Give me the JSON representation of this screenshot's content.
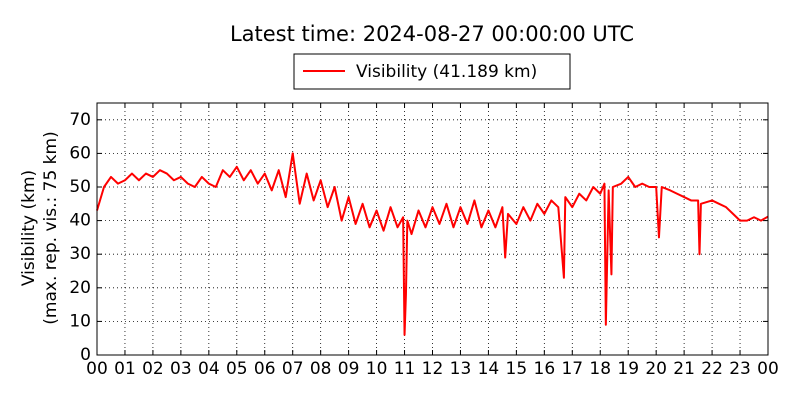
{
  "chart_data": {
    "type": "line",
    "title": "Latest time: 2024-08-27 00:00:00 UTC",
    "ylabel": [
      "Visibility (km)",
      "(max. rep. vis.: 75 km)"
    ],
    "x": [
      0,
      0.25,
      0.5,
      0.75,
      1,
      1.25,
      1.5,
      1.75,
      2,
      2.25,
      2.5,
      2.75,
      3,
      3.25,
      3.5,
      3.75,
      4,
      4.25,
      4.5,
      4.75,
      5,
      5.25,
      5.5,
      5.75,
      6,
      6.25,
      6.5,
      6.75,
      7,
      7.25,
      7.5,
      7.75,
      8,
      8.25,
      8.5,
      8.75,
      9,
      9.25,
      9.5,
      9.75,
      10,
      10.25,
      10.5,
      10.75,
      10.95,
      11,
      11.05,
      11.1,
      11.25,
      11.5,
      11.75,
      12,
      12.25,
      12.5,
      12.75,
      13,
      13.25,
      13.5,
      13.75,
      14,
      14.25,
      14.5,
      14.6,
      14.7,
      15,
      15.25,
      15.5,
      15.75,
      16,
      16.25,
      16.5,
      16.7,
      16.75,
      17,
      17.25,
      17.5,
      17.75,
      18,
      18.15,
      18.2,
      18.3,
      18.4,
      18.45,
      18.75,
      19,
      19.25,
      19.5,
      19.75,
      20,
      20.1,
      20.2,
      20.5,
      20.75,
      21,
      21.25,
      21.5,
      21.55,
      21.6,
      22,
      22.25,
      22.5,
      22.75,
      23,
      23.25,
      23.5,
      23.75,
      24
    ],
    "series": [
      {
        "name": "Visibility (41.189 km)",
        "color": "#ff0000",
        "values": [
          43,
          50,
          53,
          51,
          52,
          54,
          52,
          54,
          53,
          55,
          54,
          52,
          53,
          51,
          50,
          53,
          51,
          50,
          55,
          53,
          56,
          52,
          55,
          51,
          54,
          49,
          55,
          47,
          60,
          45,
          54,
          46,
          52,
          44,
          50,
          40,
          47,
          39,
          45,
          38,
          43,
          37,
          44,
          38,
          41,
          6,
          18,
          40,
          36,
          43,
          38,
          44,
          39,
          45,
          38,
          44,
          39,
          46,
          38,
          43,
          38,
          44,
          29,
          42,
          39,
          44,
          40,
          45,
          42,
          46,
          44,
          23,
          47,
          44,
          48,
          46,
          50,
          48,
          51,
          9,
          49,
          24,
          50,
          51,
          53,
          50,
          51,
          50,
          50,
          35,
          50,
          49,
          48,
          47,
          46,
          46,
          30,
          45,
          46,
          45,
          44,
          42,
          40,
          40,
          41,
          40,
          41.189
        ]
      }
    ],
    "xlim": [
      0,
      24
    ],
    "ylim": [
      0,
      75
    ],
    "xticks": [
      {
        "value": 0,
        "label": "00"
      },
      {
        "value": 1,
        "label": "01"
      },
      {
        "value": 2,
        "label": "02"
      },
      {
        "value": 3,
        "label": "03"
      },
      {
        "value": 4,
        "label": "04"
      },
      {
        "value": 5,
        "label": "05"
      },
      {
        "value": 6,
        "label": "06"
      },
      {
        "value": 7,
        "label": "07"
      },
      {
        "value": 8,
        "label": "08"
      },
      {
        "value": 9,
        "label": "09"
      },
      {
        "value": 10,
        "label": "10"
      },
      {
        "value": 11,
        "label": "11"
      },
      {
        "value": 12,
        "label": "12"
      },
      {
        "value": 13,
        "label": "13"
      },
      {
        "value": 14,
        "label": "14"
      },
      {
        "value": 15,
        "label": "15"
      },
      {
        "value": 16,
        "label": "16"
      },
      {
        "value": 17,
        "label": "17"
      },
      {
        "value": 18,
        "label": "18"
      },
      {
        "value": 19,
        "label": "19"
      },
      {
        "value": 20,
        "label": "20"
      },
      {
        "value": 21,
        "label": "21"
      },
      {
        "value": 22,
        "label": "22"
      },
      {
        "value": 23,
        "label": "23"
      },
      {
        "value": 24,
        "label": "00"
      }
    ],
    "yticks": [
      0,
      10,
      20,
      30,
      40,
      50,
      60,
      70
    ],
    "grid": true,
    "legend": "top"
  }
}
